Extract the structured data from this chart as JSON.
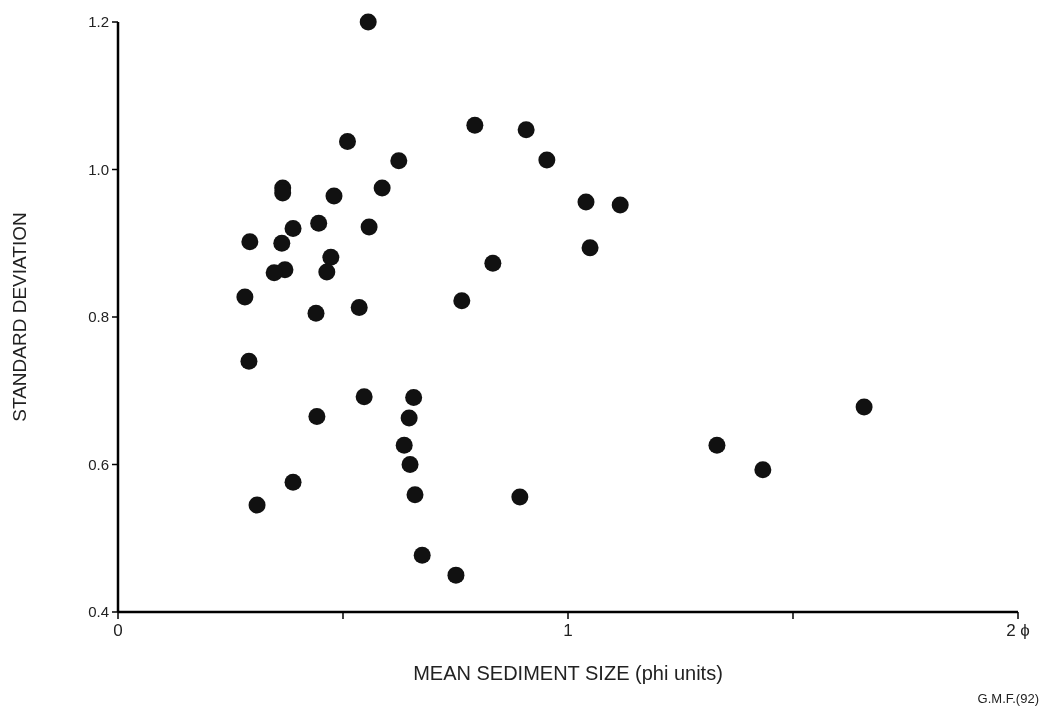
{
  "chart_data": {
    "type": "scatter",
    "xlabel": "MEAN SEDIMENT SIZE (phi units)",
    "ylabel": "STANDARD DEVIATION",
    "annotations": [
      "G.M.F.(92)"
    ],
    "x": [
      0.556,
      0.793,
      0.907,
      0.953,
      1.04,
      1.116,
      1.049,
      0.833,
      0.636,
      0.649,
      0.66,
      0.676,
      0.751,
      0.389,
      0.309,
      0.893,
      1.331,
      1.433,
      1.658,
      0.51,
      0.624,
      0.366,
      0.366,
      0.48,
      0.587,
      0.446,
      0.389,
      0.558,
      0.293,
      0.364,
      0.473,
      0.464,
      0.371,
      0.347,
      0.282,
      0.44,
      0.536,
      0.764,
      0.291,
      0.547,
      0.657,
      0.442,
      0.647
    ],
    "values": [
      1.2,
      1.06,
      1.054,
      1.013,
      0.956,
      0.952,
      0.894,
      0.873,
      0.626,
      0.6,
      0.559,
      0.477,
      0.45,
      0.576,
      0.545,
      0.556,
      0.626,
      0.593,
      0.678,
      1.038,
      1.012,
      0.975,
      0.968,
      0.964,
      0.975,
      0.927,
      0.92,
      0.922,
      0.902,
      0.9,
      0.881,
      0.861,
      0.864,
      0.86,
      0.827,
      0.805,
      0.813,
      0.822,
      0.74,
      0.692,
      0.691,
      0.665,
      0.663
    ],
    "color": "#111111",
    "marker": "circle",
    "grid": false,
    "xlim": [
      0,
      2
    ],
    "ylim": [
      0.4,
      1.2
    ],
    "xticks": [
      0,
      {
        "value": 0.5,
        "label": null
      },
      1,
      {
        "value": 1.5,
        "label": null
      },
      {
        "value": 2,
        "label": "2 ϕ"
      }
    ],
    "yticks": [
      {
        "value": 0.4,
        "label": "0.4"
      },
      {
        "value": 0.6,
        "label": "0.6"
      },
      {
        "value": 0.8,
        "label": "0.8"
      },
      {
        "value": 1.0,
        "label": "1.0"
      },
      {
        "value": 1.2,
        "label": "1.2"
      }
    ]
  }
}
